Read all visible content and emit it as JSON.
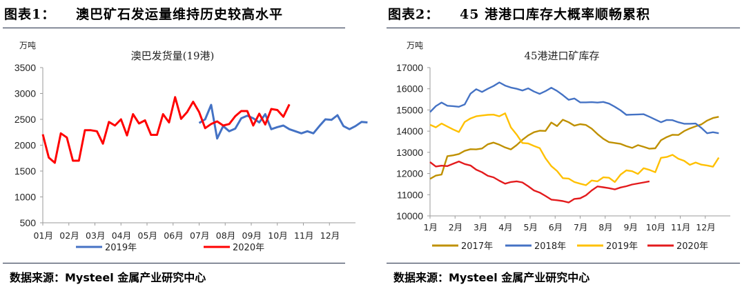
{
  "left": {
    "figure_label": "图表1：",
    "figure_title": "澳巴矿石发运量维持历史较高水平",
    "source": "数据来源：Mysteel 金属产业研究中心"
  },
  "right": {
    "figure_label": "图表2：",
    "figure_title": "45 港港口库存大概率顺畅累积",
    "source": "数据来源：Mysteel 金属产业研究中心"
  },
  "chart_data": [
    {
      "type": "line",
      "title": "澳巴发货量(19港)",
      "ylabel": "万吨",
      "xlabel": "",
      "ylim": [
        500,
        3500
      ],
      "yticks": [
        500,
        1000,
        1500,
        2000,
        2500,
        3000,
        3500
      ],
      "categories": [
        "01月",
        "02月",
        "03月",
        "04月",
        "05月",
        "06月",
        "07月",
        "08月",
        "09月",
        "10月",
        "11月",
        "12月"
      ],
      "x_unit": "week_of_year",
      "grid": false,
      "legend_position": "bottom",
      "series": [
        {
          "name": "2019年",
          "color": "#4472C4",
          "start_week": 26,
          "values": [
            2430,
            2500,
            2780,
            2130,
            2370,
            2270,
            2320,
            2520,
            2570,
            2520,
            2440,
            2600,
            2310,
            2350,
            2380,
            2310,
            2270,
            2230,
            2270,
            2230,
            2370,
            2500,
            2490,
            2580,
            2370,
            2310,
            2370,
            2450,
            2440
          ]
        },
        {
          "name": "2020年",
          "color": "#FF0000",
          "start_week": 0,
          "values": [
            2210,
            1760,
            1660,
            2230,
            2150,
            1700,
            1700,
            2290,
            2290,
            2270,
            2030,
            2450,
            2380,
            2500,
            2190,
            2600,
            2420,
            2480,
            2200,
            2200,
            2600,
            2440,
            2930,
            2510,
            2640,
            2840,
            2640,
            2330,
            2410,
            2460,
            2380,
            2410,
            2560,
            2660,
            2660,
            2380,
            2610,
            2400,
            2700,
            2680,
            2550,
            2790
          ]
        }
      ]
    },
    {
      "type": "line",
      "title": "45港进口矿库存",
      "ylabel": "万吨",
      "xlabel": "",
      "ylim": [
        10000,
        17000
      ],
      "yticks": [
        10000,
        11000,
        12000,
        13000,
        14000,
        15000,
        16000,
        17000
      ],
      "categories": [
        "1月",
        "2月",
        "3月",
        "4月",
        "5月",
        "6月",
        "7月",
        "8月",
        "9月",
        "10月",
        "11月",
        "12月"
      ],
      "x_unit": "week_of_year",
      "grid": false,
      "legend_position": "bottom",
      "series": [
        {
          "name": "2017年",
          "color": "#BF9000",
          "start_week": 0,
          "values": [
            11750,
            11900,
            11950,
            12820,
            12860,
            12920,
            13070,
            13150,
            13140,
            13180,
            13380,
            13460,
            13360,
            13230,
            13140,
            13340,
            13590,
            13800,
            13950,
            14020,
            14010,
            14410,
            14240,
            14540,
            14420,
            14260,
            14330,
            14290,
            14120,
            13860,
            13640,
            13480,
            13440,
            13400,
            13290,
            13210,
            13340,
            13260,
            13170,
            13190,
            13570,
            13720,
            13830,
            13820,
            14000,
            14130,
            14230,
            14320,
            14500,
            14620,
            14680
          ]
        },
        {
          "name": "2018年",
          "color": "#4472C4",
          "start_week": 0,
          "values": [
            14900,
            15180,
            15350,
            15200,
            15180,
            15150,
            15260,
            15770,
            15980,
            15850,
            16000,
            16130,
            16300,
            16150,
            16060,
            16000,
            15920,
            16020,
            15870,
            15760,
            15890,
            16050,
            15900,
            15700,
            15480,
            15540,
            15360,
            15360,
            15370,
            15350,
            15380,
            15300,
            15150,
            14980,
            14770,
            14780,
            14790,
            14800,
            14680,
            14550,
            14420,
            14530,
            14520,
            14420,
            14350,
            14350,
            14360,
            14150,
            13900,
            13950,
            13900
          ]
        },
        {
          "name": "2019年",
          "color": "#FFC000",
          "start_week": 0,
          "values": [
            14300,
            14180,
            14360,
            14220,
            14080,
            13960,
            14430,
            14600,
            14700,
            14740,
            14770,
            14780,
            14700,
            14840,
            14180,
            13840,
            13440,
            13420,
            13300,
            13200,
            12720,
            12350,
            12120,
            11780,
            11760,
            11600,
            11520,
            11450,
            11670,
            11630,
            11820,
            11800,
            11600,
            11950,
            12150,
            12110,
            11980,
            12250,
            12170,
            12060,
            12740,
            12780,
            12880,
            12700,
            12600,
            12410,
            12520,
            12420,
            12380,
            12320,
            12750
          ]
        },
        {
          "name": "2020年",
          "color": "#E31A1C",
          "start_week": 0,
          "values": [
            12540,
            12330,
            12370,
            12350,
            12460,
            12570,
            12450,
            12380,
            12180,
            12060,
            11890,
            11820,
            11660,
            11520,
            11600,
            11630,
            11580,
            11400,
            11200,
            11100,
            10940,
            10770,
            10740,
            10700,
            10630,
            10800,
            10830,
            10970,
            11200,
            11390,
            11350,
            11310,
            11250,
            11340,
            11400,
            11480,
            11530,
            11580,
            11630
          ]
        }
      ]
    }
  ]
}
